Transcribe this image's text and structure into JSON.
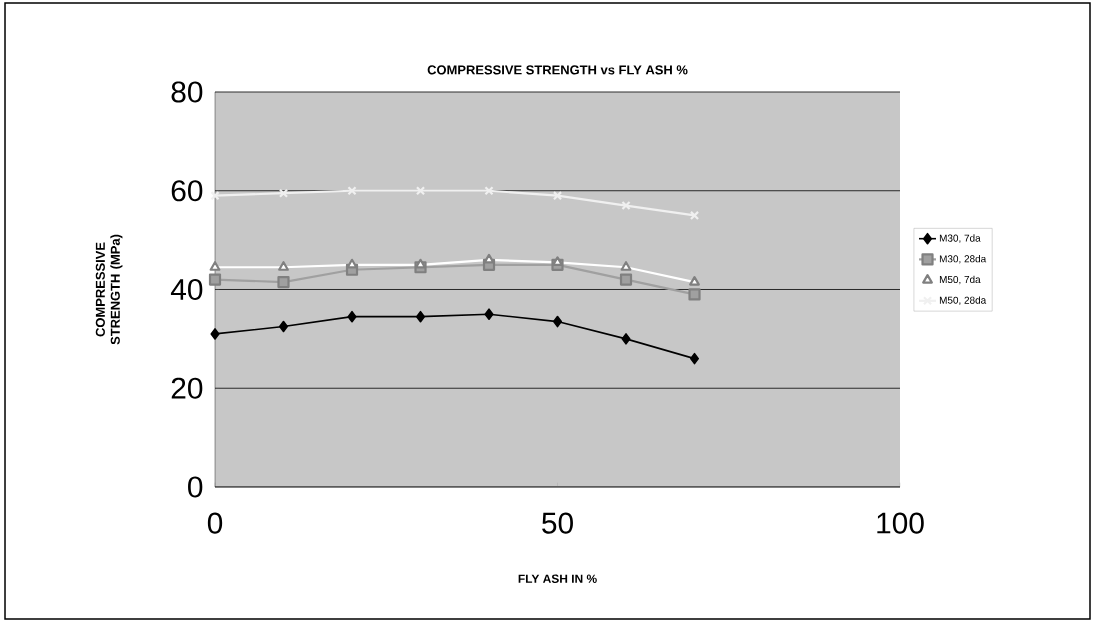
{
  "chart_data": {
    "type": "line",
    "title": "COMPRESSIVE STRENGTH vs FLY ASH %",
    "xlabel": "FLY ASH IN %",
    "ylabel": "COMPRESSIVE STRENGTH (MPa)",
    "x": [
      0,
      10,
      20,
      30,
      40,
      50,
      60,
      70
    ],
    "series": [
      {
        "name": "M30, 7da",
        "color": "#000000",
        "marker": "diamond",
        "values": [
          31,
          32.5,
          34.5,
          34.5,
          35,
          33.5,
          30,
          26
        ]
      },
      {
        "name": "M30, 28da",
        "color": "#a0a0a0",
        "marker": "square",
        "values": [
          42,
          41.5,
          44,
          44.5,
          45,
          45,
          42,
          39
        ]
      },
      {
        "name": "M50, 7da",
        "color": "#ffffff",
        "marker": "triangle",
        "values": [
          44.5,
          44.5,
          45,
          45,
          46,
          45.5,
          44.5,
          41.5
        ]
      },
      {
        "name": "M50, 28da",
        "color": "#f0f0f0",
        "marker": "cross",
        "values": [
          59,
          59.5,
          60,
          60,
          60,
          59,
          57,
          55
        ]
      }
    ],
    "xlim": [
      0,
      100
    ],
    "xticks": [
      0,
      50,
      100
    ],
    "ylim": [
      0,
      80
    ],
    "yticks": [
      0,
      20,
      40,
      60,
      80
    ],
    "grid": "y",
    "legend": "right"
  }
}
